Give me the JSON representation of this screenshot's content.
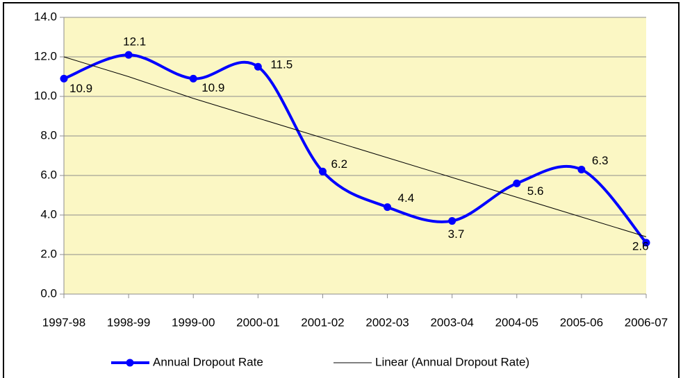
{
  "chart_data": {
    "type": "line",
    "categories": [
      "1997-98",
      "1998-99",
      "1999-00",
      "2000-01",
      "2001-02",
      "2002-03",
      "2003-04",
      "2004-05",
      "2005-06",
      "2006-07"
    ],
    "series": [
      {
        "name": "Annual Dropout Rate",
        "color": "#0000ff",
        "values": [
          10.9,
          12.1,
          10.9,
          11.5,
          6.2,
          4.4,
          3.7,
          5.6,
          6.3,
          2.6
        ],
        "smooth": true,
        "markers": true
      },
      {
        "name": "Linear (Annual Dropout Rate)",
        "color": "#000000",
        "values": [
          12.0,
          11.0,
          9.9,
          8.9,
          7.9,
          6.9,
          5.9,
          4.9,
          3.9,
          2.9
        ],
        "smooth": false,
        "markers": false
      }
    ],
    "ylim": [
      0,
      14
    ],
    "yticks": [
      {
        "value": 0,
        "label": "0.0"
      },
      {
        "value": 2,
        "label": "2.0"
      },
      {
        "value": 4,
        "label": "4.0"
      },
      {
        "value": 6,
        "label": "6.0"
      },
      {
        "value": 8,
        "label": "8.0"
      },
      {
        "value": 10,
        "label": "10.0"
      },
      {
        "value": 12,
        "label": "12.0"
      },
      {
        "value": 14,
        "label": "14.0"
      }
    ],
    "grid": true,
    "plot_background": "#fbf7c4",
    "legend": "bottom"
  }
}
